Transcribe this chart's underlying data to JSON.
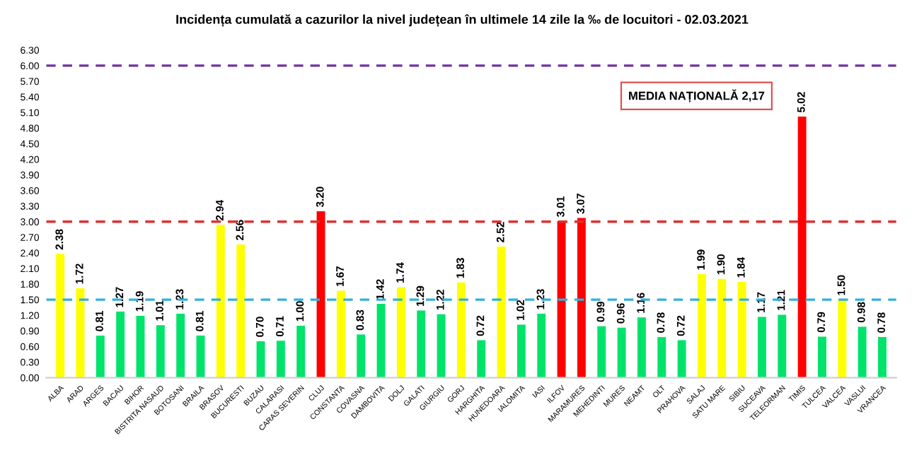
{
  "chart_data": {
    "type": "bar",
    "title": "Incidența cumulată a cazurilor la nivel județean în ultimele 14 zile la ‰ de locuitori - 02.03.2021",
    "categories": [
      "ALBA",
      "ARAD",
      "ARGES",
      "BACAU",
      "BIHOR",
      "BISTRITA NASAUD",
      "BOTOSANI",
      "BRAILA",
      "BRASOV",
      "BUCURESTI",
      "BUZAU",
      "CALARASI",
      "CARAS SEVERIN",
      "CLUJ",
      "CONSTANTA",
      "COVASNA",
      "DAMBOVITA",
      "DOLJ",
      "GALATI",
      "GIURGIU",
      "GORJ",
      "HARGHITA",
      "HUNEDOARA",
      "IALOMITA",
      "IASI",
      "ILFOV",
      "MARAMURES",
      "MEHEDINTI",
      "MURES",
      "NEAMT",
      "OLT",
      "PRAHOVA",
      "SALAJ",
      "SATU MARE",
      "SIBIU",
      "SUCEAVA",
      "TELEORMAN",
      "TIMIS",
      "TULCEA",
      "VALCEA",
      "VASLUI",
      "VRANCEA"
    ],
    "values": [
      2.38,
      1.72,
      0.81,
      1.27,
      1.19,
      1.01,
      1.23,
      0.81,
      2.94,
      2.56,
      0.7,
      0.71,
      1.0,
      3.2,
      1.67,
      0.83,
      1.42,
      1.74,
      1.29,
      1.22,
      1.83,
      0.72,
      2.52,
      1.02,
      1.23,
      3.01,
      3.07,
      0.99,
      0.96,
      1.16,
      0.78,
      0.72,
      1.99,
      1.9,
      1.84,
      1.17,
      1.21,
      5.02,
      0.79,
      1.5,
      0.98,
      0.78
    ],
    "value_labels": [
      "2.38",
      "1.72",
      "0.81",
      "1.27",
      "1.19",
      "1.01",
      "1.23",
      "0.81",
      "2.94",
      "2.56",
      "0.70",
      "0.71",
      "1.00",
      "3.20",
      "1.67",
      "0.83",
      "1.42",
      "1.74",
      "1.29",
      "1.22",
      "1.83",
      "0.72",
      "2.52",
      "1.02",
      "1.23",
      "3.01",
      "3.07",
      "0.99",
      "0.96",
      "1.16",
      "0.78",
      "0.72",
      "1.99",
      "1.90",
      "1.84",
      "1.17",
      "1.21",
      "5.02",
      "0.79",
      "1.50",
      "0.98",
      "0.78"
    ],
    "colors": [
      "#ffff00",
      "#ffff00",
      "#00e36b",
      "#00e36b",
      "#00e36b",
      "#00e36b",
      "#00e36b",
      "#00e36b",
      "#ffff00",
      "#ffff00",
      "#00e36b",
      "#00e36b",
      "#00e36b",
      "#ff0000",
      "#ffff00",
      "#00e36b",
      "#00e36b",
      "#ffff00",
      "#00e36b",
      "#00e36b",
      "#ffff00",
      "#00e36b",
      "#ffff00",
      "#00e36b",
      "#00e36b",
      "#ff0000",
      "#ff0000",
      "#00e36b",
      "#00e36b",
      "#00e36b",
      "#00e36b",
      "#00e36b",
      "#ffff00",
      "#ffff00",
      "#ffff00",
      "#00e36b",
      "#00e36b",
      "#ff0000",
      "#00e36b",
      "#ffff00",
      "#00e36b",
      "#00e36b"
    ],
    "ylim": [
      0,
      6.3
    ],
    "yticks": [
      {
        "value": 0,
        "label": "0.00"
      },
      {
        "value": 0.3,
        "label": "0.30"
      },
      {
        "value": 0.6,
        "label": "0.60"
      },
      {
        "value": 0.9,
        "label": "0.90"
      },
      {
        "value": 1.2,
        "label": "1.20"
      },
      {
        "value": 1.5,
        "label": "1.50"
      },
      {
        "value": 1.8,
        "label": "1.80"
      },
      {
        "value": 2.1,
        "label": "2.10"
      },
      {
        "value": 2.4,
        "label": "2.40"
      },
      {
        "value": 2.7,
        "label": "2.70"
      },
      {
        "value": 3.0,
        "label": "3.00"
      },
      {
        "value": 3.3,
        "label": "3.30"
      },
      {
        "value": 3.6,
        "label": "3.60"
      },
      {
        "value": 3.9,
        "label": "3.90"
      },
      {
        "value": 4.2,
        "label": "4.20"
      },
      {
        "value": 4.5,
        "label": "4.50"
      },
      {
        "value": 4.8,
        "label": "4.80"
      },
      {
        "value": 5.1,
        "label": "5.10"
      },
      {
        "value": 5.4,
        "label": "5.40"
      },
      {
        "value": 5.7,
        "label": "5.70"
      },
      {
        "value": 6.0,
        "label": "6.00"
      },
      {
        "value": 6.3,
        "label": "6.30"
      }
    ],
    "ref_lines": [
      {
        "axis": "y",
        "value": 6.0,
        "color": "#7030a0",
        "line_style": "dashed"
      },
      {
        "axis": "y",
        "value": 3.0,
        "color": "#e03030",
        "line_style": "dashed"
      },
      {
        "axis": "y",
        "value": 1.5,
        "color": "#30b0e0",
        "line_style": "dashed"
      }
    ],
    "annotations": [
      "MEDIA NAȚIONALĂ 2,17"
    ],
    "grid": false,
    "legend": false
  }
}
